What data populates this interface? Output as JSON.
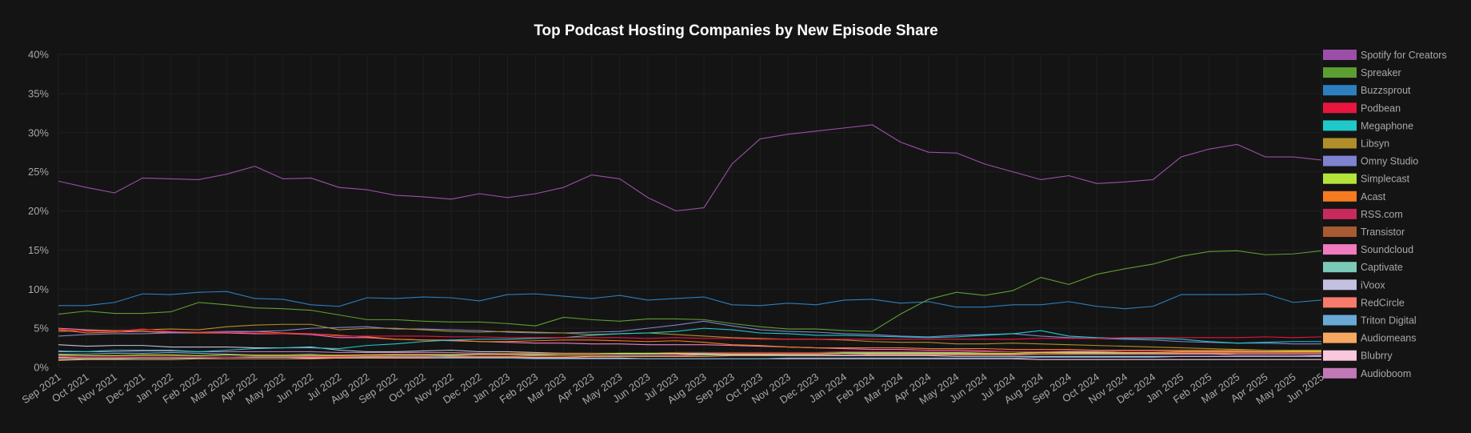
{
  "chart_data": {
    "type": "line",
    "title": "Top Podcast Hosting Companies by New Episode Share",
    "xlabel": "",
    "ylabel": "",
    "ylim": [
      0,
      40
    ],
    "y_ticks": [
      "0%",
      "5%",
      "10%",
      "15%",
      "20%",
      "25%",
      "30%",
      "35%",
      "40%"
    ],
    "grid": true,
    "legend_position": "right",
    "x": [
      "Sep 2021",
      "Oct 2021",
      "Nov 2021",
      "Dec 2021",
      "Jan 2022",
      "Feb 2022",
      "Mar 2022",
      "Apr 2022",
      "May 2022",
      "Jun 2022",
      "Jul 2022",
      "Aug 2022",
      "Sep 2022",
      "Oct 2022",
      "Nov 2022",
      "Dec 2022",
      "Jan 2023",
      "Feb 2023",
      "Mar 2023",
      "Apr 2023",
      "May 2023",
      "Jun 2023",
      "Jul 2023",
      "Aug 2023",
      "Sep 2023",
      "Oct 2023",
      "Nov 2023",
      "Dec 2023",
      "Jan 2024",
      "Feb 2024",
      "Mar 2024",
      "Apr 2024",
      "May 2024",
      "Jun 2024",
      "Jul 2024",
      "Aug 2024",
      "Sep 2024",
      "Oct 2024",
      "Nov 2024",
      "Dec 2024",
      "Jan 2025",
      "Feb 2025",
      "Mar 2025",
      "Apr 2025",
      "May 2025",
      "Jun 2025"
    ],
    "series": [
      {
        "name": "Spotify for Creators",
        "color": "#9b4fa8",
        "values": [
          23.8,
          23.0,
          22.3,
          24.2,
          24.1,
          24.0,
          24.7,
          25.7,
          24.1,
          24.2,
          23.0,
          22.7,
          22.0,
          21.8,
          21.5,
          22.2,
          21.7,
          22.2,
          23.0,
          24.6,
          24.1,
          21.7,
          20.0,
          20.4,
          26.0,
          29.2,
          29.8,
          30.2,
          30.6,
          31.0,
          28.8,
          27.5,
          27.4,
          26.0,
          25.0,
          24.0,
          24.5,
          23.5,
          23.7,
          24.0,
          26.9,
          27.9,
          28.5,
          26.9,
          26.9,
          26.5
        ]
      },
      {
        "name": "Spreaker",
        "color": "#5d9e32",
        "values": [
          6.8,
          7.2,
          6.9,
          6.9,
          7.1,
          8.3,
          8.0,
          7.6,
          7.5,
          7.3,
          6.7,
          6.1,
          6.1,
          5.9,
          5.8,
          5.8,
          5.6,
          5.3,
          6.4,
          6.1,
          5.9,
          6.2,
          6.2,
          6.1,
          5.6,
          5.2,
          4.9,
          4.9,
          4.7,
          4.6,
          6.8,
          8.7,
          9.6,
          9.2,
          9.8,
          11.5,
          10.6,
          11.9,
          12.6,
          13.2,
          14.2,
          14.8,
          14.9,
          14.4,
          14.5,
          14.9
        ]
      },
      {
        "name": "Buzzsprout",
        "color": "#2e7fbf",
        "values": [
          7.9,
          7.9,
          8.3,
          9.4,
          9.3,
          9.6,
          9.7,
          8.8,
          8.7,
          8.0,
          7.8,
          8.9,
          8.8,
          9.0,
          8.9,
          8.5,
          9.3,
          9.4,
          9.1,
          8.8,
          9.2,
          8.6,
          8.8,
          9.0,
          8.0,
          7.9,
          8.2,
          8.0,
          8.6,
          8.7,
          8.2,
          8.4,
          7.7,
          7.7,
          8.0,
          8.0,
          8.4,
          7.8,
          7.5,
          7.8,
          9.3,
          9.3,
          9.3,
          9.4,
          8.3,
          8.6
        ]
      },
      {
        "name": "Podbean",
        "color": "#e8163f",
        "values": [
          4.9,
          4.6,
          4.6,
          4.9,
          4.6,
          4.5,
          4.5,
          4.4,
          4.3,
          4.3,
          4.0,
          4.0,
          4.0,
          4.0,
          3.9,
          3.9,
          3.8,
          3.8,
          3.8,
          3.8,
          3.8,
          3.7,
          3.8,
          3.7,
          3.7,
          3.6,
          3.6,
          3.6,
          3.6,
          3.6,
          3.6,
          3.6,
          3.6,
          3.6,
          3.6,
          3.7,
          3.7,
          3.7,
          3.8,
          3.8,
          3.8,
          3.8,
          3.8,
          3.9,
          3.8,
          3.9
        ]
      },
      {
        "name": "Megaphone",
        "color": "#1fc9c9",
        "values": [
          2.0,
          2.0,
          2.2,
          2.2,
          2.2,
          2.0,
          2.2,
          2.4,
          2.5,
          2.5,
          2.4,
          2.8,
          3.0,
          3.3,
          3.5,
          3.6,
          3.6,
          3.7,
          3.8,
          4.1,
          4.3,
          4.4,
          4.6,
          5.0,
          4.8,
          4.4,
          4.3,
          4.1,
          4.1,
          4.0,
          3.9,
          3.8,
          3.9,
          4.1,
          4.3,
          4.7,
          4.0,
          3.8,
          3.7,
          3.7,
          3.6,
          3.3,
          3.1,
          3.2,
          3.3,
          3.3
        ]
      },
      {
        "name": "Libsyn",
        "color": "#b08f2a",
        "values": [
          4.6,
          4.7,
          4.7,
          4.8,
          4.9,
          4.8,
          5.2,
          5.4,
          5.5,
          5.5,
          4.8,
          5.0,
          5.0,
          4.8,
          4.6,
          4.5,
          4.6,
          4.5,
          4.4,
          4.2,
          4.3,
          4.4,
          4.2,
          4.0,
          3.8,
          3.7,
          3.6,
          3.6,
          3.5,
          3.3,
          3.2,
          3.2,
          3.0,
          3.0,
          3.1,
          3.0,
          2.9,
          2.8,
          2.7,
          2.6,
          2.5,
          2.4,
          2.3,
          2.2,
          2.2,
          2.2
        ]
      },
      {
        "name": "Omny Studio",
        "color": "#7f82cf",
        "values": [
          4.0,
          4.2,
          4.3,
          4.3,
          4.4,
          4.5,
          4.6,
          4.6,
          4.7,
          5.0,
          5.1,
          5.2,
          4.9,
          4.9,
          4.8,
          4.7,
          4.5,
          4.4,
          4.4,
          4.5,
          4.6,
          5.0,
          5.4,
          5.9,
          5.3,
          4.8,
          4.6,
          4.5,
          4.3,
          4.2,
          4.0,
          3.9,
          4.1,
          4.2,
          4.3,
          4.0,
          3.8,
          3.7,
          3.6,
          3.5,
          3.3,
          3.2,
          3.1,
          3.1,
          3.0,
          3.0
        ]
      },
      {
        "name": "Simplecast",
        "color": "#b4e43a",
        "values": [
          1.6,
          1.5,
          1.5,
          1.6,
          1.6,
          1.5,
          1.6,
          1.5,
          1.5,
          1.5,
          1.5,
          1.6,
          1.6,
          1.6,
          1.6,
          1.7,
          1.7,
          1.7,
          1.7,
          1.7,
          1.8,
          1.8,
          1.8,
          1.7,
          1.7,
          1.7,
          1.7,
          1.7,
          1.8,
          1.8,
          1.8,
          1.8,
          1.8,
          1.8,
          1.8,
          1.9,
          1.9,
          1.9,
          1.9,
          1.9,
          2.0,
          2.0,
          2.0,
          2.0,
          2.0,
          2.0
        ]
      },
      {
        "name": "Acast",
        "color": "#f47b20",
        "values": [
          4.8,
          4.4,
          4.5,
          4.6,
          4.4,
          4.4,
          4.5,
          4.6,
          4.4,
          4.3,
          4.1,
          3.9,
          3.6,
          3.5,
          3.5,
          3.3,
          3.3,
          3.4,
          3.5,
          3.5,
          3.4,
          3.3,
          3.4,
          3.2,
          2.9,
          2.8,
          2.6,
          2.5,
          2.5,
          2.5,
          2.5,
          2.4,
          2.4,
          2.4,
          2.3,
          2.3,
          2.3,
          2.2,
          2.2,
          2.2,
          2.2,
          2.2,
          2.2,
          2.2,
          2.1,
          2.1
        ]
      },
      {
        "name": "RSS.com",
        "color": "#c92a5c",
        "values": [
          1.4,
          1.3,
          1.3,
          1.3,
          1.3,
          1.3,
          1.3,
          1.4,
          1.4,
          1.4,
          1.4,
          1.5,
          1.5,
          1.5,
          1.6,
          1.6,
          1.6,
          1.7,
          1.7,
          1.7,
          1.8,
          1.8,
          1.9,
          1.9,
          1.9,
          1.9,
          1.9,
          1.9,
          2.0,
          2.0,
          2.0,
          2.0,
          2.0,
          2.0,
          2.0,
          2.0,
          2.1,
          2.1,
          2.1,
          2.1,
          2.1,
          2.1,
          2.1,
          2.1,
          2.1,
          2.1
        ]
      },
      {
        "name": "Transistor",
        "color": "#a85a32",
        "values": [
          1.5,
          1.5,
          1.5,
          1.5,
          1.5,
          1.5,
          1.6,
          1.6,
          1.6,
          1.6,
          1.6,
          1.6,
          1.7,
          1.7,
          1.7,
          1.7,
          1.8,
          1.8,
          1.8,
          1.8,
          1.8,
          1.8,
          1.9,
          1.9,
          1.8,
          1.8,
          1.8,
          1.8,
          1.8,
          1.8,
          1.8,
          1.8,
          1.8,
          1.8,
          1.8,
          1.8,
          1.9,
          1.9,
          1.9,
          1.9,
          1.9,
          1.9,
          1.9,
          1.9,
          1.9,
          1.9
        ]
      },
      {
        "name": "Soundcloud",
        "color": "#f07bbf",
        "values": [
          5.0,
          4.8,
          4.7,
          4.6,
          4.5,
          4.4,
          4.4,
          4.3,
          4.3,
          4.2,
          3.8,
          3.8,
          3.6,
          3.5,
          3.4,
          3.3,
          3.2,
          3.1,
          3.1,
          3.0,
          3.0,
          2.9,
          2.9,
          2.9,
          2.8,
          2.7,
          2.6,
          2.5,
          2.4,
          2.3,
          2.3,
          2.2,
          2.2,
          2.1,
          2.0,
          1.9,
          1.9,
          1.8,
          1.8,
          1.7,
          1.7,
          1.7,
          1.6,
          1.6,
          1.6,
          1.6
        ]
      },
      {
        "name": "Captivate",
        "color": "#7cc9b8",
        "values": [
          1.0,
          1.1,
          1.1,
          1.2,
          1.2,
          1.2,
          1.3,
          1.3,
          1.3,
          1.4,
          1.4,
          1.4,
          1.5,
          1.5,
          1.5,
          1.6,
          1.6,
          1.6,
          1.7,
          1.7,
          1.7,
          1.7,
          1.8,
          1.8,
          1.8,
          1.8,
          1.8,
          1.8,
          1.9,
          1.9,
          1.9,
          1.9,
          1.9,
          2.0,
          2.0,
          2.0,
          2.0,
          2.0,
          2.1,
          2.1,
          2.1,
          2.1,
          2.1,
          2.1,
          2.1,
          2.1
        ]
      },
      {
        "name": "iVoox",
        "color": "#c3c0e0",
        "values": [
          2.9,
          2.7,
          2.8,
          2.8,
          2.6,
          2.6,
          2.6,
          2.5,
          2.5,
          2.6,
          2.2,
          2.0,
          2.0,
          2.1,
          2.2,
          2.0,
          2.0,
          1.9,
          1.8,
          1.8,
          1.7,
          1.7,
          1.7,
          1.6,
          1.6,
          1.6,
          1.5,
          1.5,
          1.5,
          1.5,
          1.5,
          1.5,
          1.4,
          1.4,
          1.4,
          1.4,
          1.4,
          1.4,
          1.4,
          1.4,
          1.4,
          1.4,
          1.4,
          1.4,
          1.4,
          1.4
        ]
      },
      {
        "name": "RedCircle",
        "color": "#f77b6b",
        "values": [
          1.2,
          1.2,
          1.2,
          1.2,
          1.2,
          1.2,
          1.3,
          1.3,
          1.3,
          1.3,
          1.3,
          1.3,
          1.4,
          1.4,
          1.4,
          1.4,
          1.4,
          1.5,
          1.5,
          1.5,
          1.5,
          1.5,
          1.5,
          1.6,
          1.6,
          1.6,
          1.6,
          1.6,
          1.6,
          1.7,
          1.7,
          1.7,
          1.7,
          1.7,
          1.7,
          1.7,
          1.8,
          1.8,
          1.8,
          1.8,
          1.8,
          1.8,
          1.8,
          1.8,
          1.8,
          1.8
        ]
      },
      {
        "name": "Triton Digital",
        "color": "#6aa9d6",
        "values": [
          1.7,
          1.7,
          1.8,
          1.8,
          1.9,
          1.8,
          1.7,
          1.6,
          1.6,
          1.7,
          1.5,
          1.4,
          1.3,
          1.3,
          1.2,
          1.2,
          1.2,
          1.1,
          1.1,
          1.1,
          1.1,
          1.1,
          1.1,
          1.1,
          1.1,
          1.1,
          1.2,
          1.2,
          1.2,
          1.2,
          1.2,
          1.2,
          1.2,
          1.2,
          1.2,
          1.3,
          1.3,
          1.3,
          1.3,
          1.3,
          1.4,
          1.4,
          1.4,
          1.4,
          1.4,
          1.5
        ]
      },
      {
        "name": "Audiomeans",
        "color": "#f6a860",
        "values": [
          0.9,
          1.0,
          1.0,
          1.0,
          1.0,
          1.1,
          1.1,
          1.1,
          1.1,
          1.1,
          1.2,
          1.2,
          1.2,
          1.2,
          1.3,
          1.3,
          1.3,
          1.3,
          1.3,
          1.4,
          1.4,
          1.4,
          1.4,
          1.4,
          1.5,
          1.5,
          1.5,
          1.5,
          1.5,
          1.6,
          1.6,
          1.6,
          1.6,
          1.6,
          1.6,
          1.7,
          1.7,
          1.7,
          1.7,
          1.7,
          1.7,
          1.7,
          1.8,
          1.8,
          1.8,
          1.8
        ]
      },
      {
        "name": "Blubrry",
        "color": "#f9c8dc",
        "values": [
          1.3,
          1.3,
          1.3,
          1.3,
          1.3,
          1.3,
          1.3,
          1.3,
          1.3,
          1.2,
          1.2,
          1.2,
          1.2,
          1.2,
          1.2,
          1.2,
          1.2,
          1.2,
          1.2,
          1.2,
          1.2,
          1.1,
          1.1,
          1.1,
          1.1,
          1.1,
          1.1,
          1.1,
          1.1,
          1.1,
          1.1,
          1.1,
          1.1,
          1.1,
          1.1,
          1.0,
          1.0,
          1.0,
          1.0,
          1.0,
          1.0,
          1.0,
          1.0,
          1.0,
          1.0,
          1.0
        ]
      },
      {
        "name": "Audioboom",
        "color": "#c079b6",
        "values": [
          2.1,
          2.0,
          2.0,
          2.1,
          2.1,
          2.0,
          2.0,
          2.0,
          2.0,
          2.0,
          1.9,
          1.9,
          1.9,
          1.9,
          1.9,
          1.8,
          1.8,
          1.8,
          1.8,
          1.8,
          1.8,
          1.8,
          1.8,
          1.8,
          1.8,
          1.8,
          1.8,
          1.8,
          1.8,
          1.8,
          1.8,
          1.8,
          1.8,
          1.8,
          1.8,
          1.8,
          1.8,
          1.8,
          1.8,
          1.8,
          1.8,
          1.8,
          1.8,
          1.8,
          1.8,
          1.8
        ]
      }
    ]
  }
}
